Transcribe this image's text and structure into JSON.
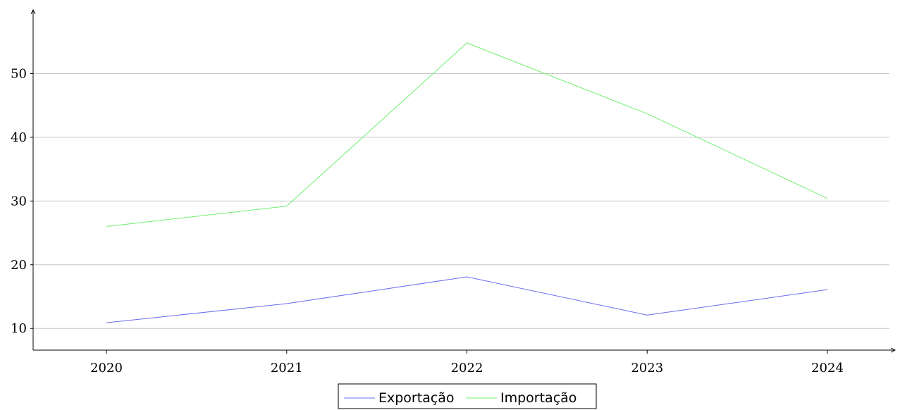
{
  "chart_data": {
    "type": "line",
    "title": "",
    "xlabel": "",
    "ylabel": "",
    "categories": [
      "2020",
      "2021",
      "2022",
      "2023",
      "2024"
    ],
    "series": [
      {
        "name": "Exportação",
        "values": [
          10.9,
          13.9,
          18.1,
          12.1,
          16.1
        ],
        "color": "#6b6bf0"
      },
      {
        "name": "Importação",
        "values": [
          26.0,
          29.2,
          54.8,
          43.7,
          30.4
        ],
        "color": "#6ef06e"
      }
    ],
    "yticks": [
      10,
      20,
      30,
      40,
      50
    ],
    "ylim": [
      6.6,
      60.0
    ],
    "grid": true,
    "legend_position": "bottom-center"
  }
}
